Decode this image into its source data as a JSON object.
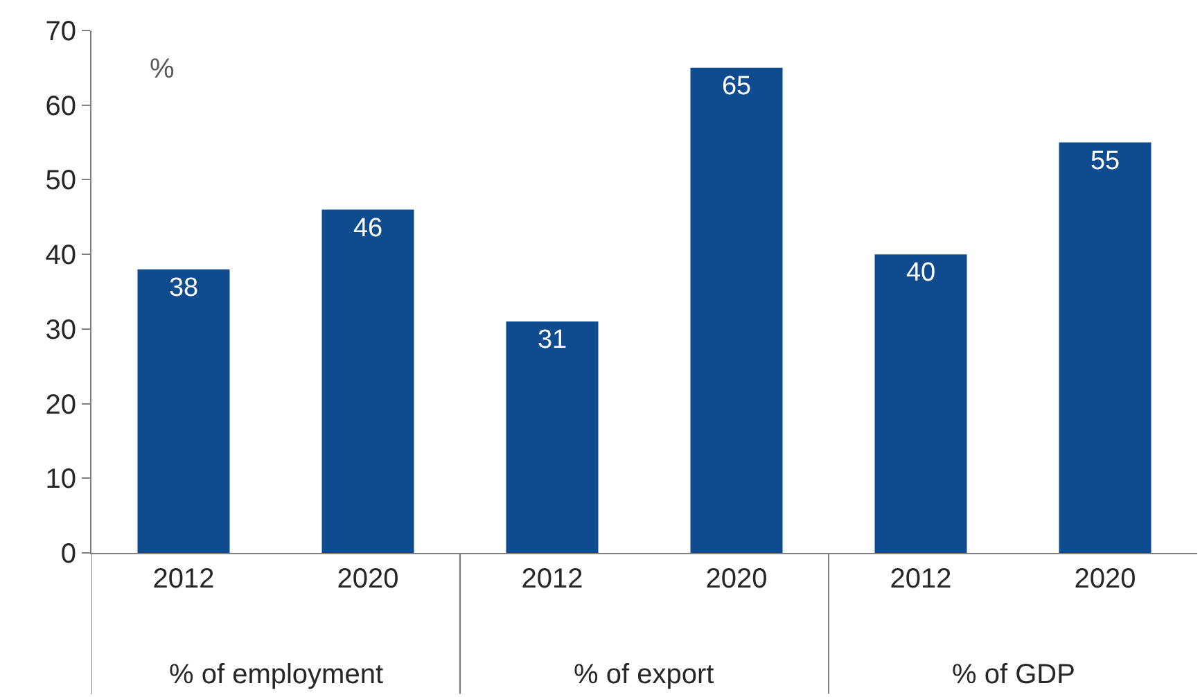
{
  "chart_data": {
    "type": "bar",
    "categories": [
      "2012",
      "2020",
      "2012",
      "2020",
      "2012",
      "2020"
    ],
    "values": [
      38,
      46,
      31,
      65,
      40,
      55
    ],
    "color": "#0f4b8f",
    "ylim": [
      0,
      70
    ],
    "yticks": [
      0,
      10,
      20,
      30,
      40,
      50,
      60,
      70
    ],
    "data_labels": true,
    "annotations": [
      "%",
      "% of employment",
      "% of export",
      "% of GDP"
    ]
  }
}
